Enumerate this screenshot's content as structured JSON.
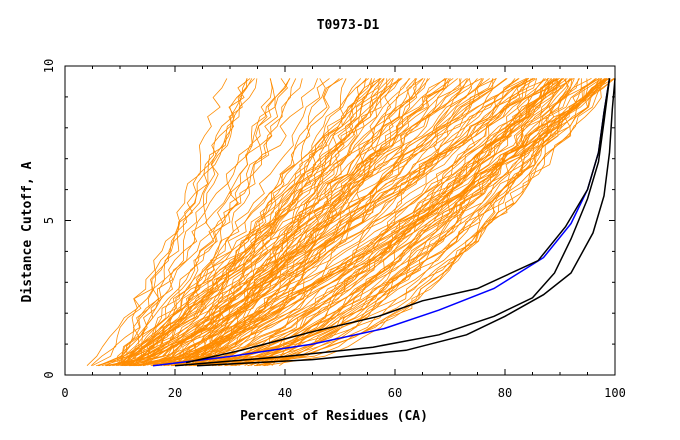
{
  "chart_data": {
    "type": "line",
    "title": "T0973-D1",
    "xlabel": "Percent of Residues (CA)",
    "ylabel": "Distance Cutoff, A",
    "xlim": [
      0,
      100
    ],
    "ylim": [
      0,
      10
    ],
    "x_ticks": [
      "0",
      "20",
      "40",
      "60",
      "80",
      "100"
    ],
    "y_ticks": [
      "0",
      "5",
      "10"
    ],
    "grid": false,
    "legend": "none",
    "colors": {
      "background_models": "#ff8c00",
      "highlight_blue": "#0000ff",
      "highlight_black": "#000000",
      "frame": "#000000"
    },
    "background_series_count": 150,
    "highlight_series": [
      {
        "color": "#0000ff",
        "x": [
          16,
          30,
          45,
          58,
          68,
          78,
          87,
          92,
          95,
          97,
          98,
          99
        ],
        "y": [
          0.3,
          0.6,
          1.0,
          1.5,
          2.1,
          2.8,
          3.8,
          4.9,
          6.0,
          7.2,
          8.5,
          9.6
        ]
      },
      {
        "color": "#000000",
        "x": [
          22,
          32,
          45,
          57,
          65,
          75,
          86,
          91,
          95,
          97,
          98,
          99
        ],
        "y": [
          0.4,
          0.8,
          1.4,
          1.9,
          2.4,
          2.8,
          3.7,
          4.8,
          6.0,
          7.2,
          8.5,
          9.6
        ]
      },
      {
        "color": "#000000",
        "x": [
          20,
          40,
          56,
          68,
          78,
          85,
          89,
          92,
          95,
          97,
          98,
          99
        ],
        "y": [
          0.3,
          0.6,
          0.9,
          1.3,
          1.9,
          2.5,
          3.3,
          4.4,
          5.7,
          6.9,
          8.2,
          9.6
        ]
      },
      {
        "color": "#000000",
        "x": [
          24,
          45,
          62,
          73,
          80,
          87,
          92,
          96,
          98,
          99,
          99.5,
          100
        ],
        "y": [
          0.3,
          0.5,
          0.8,
          1.3,
          1.9,
          2.6,
          3.3,
          4.6,
          5.8,
          7.2,
          8.6,
          9.6
        ]
      }
    ]
  }
}
